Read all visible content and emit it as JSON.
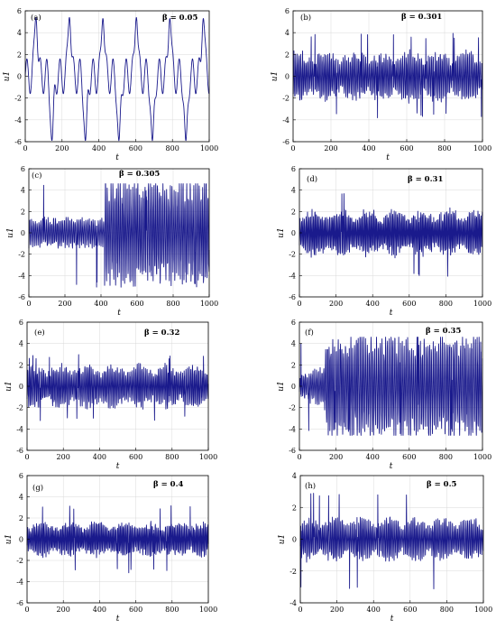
{
  "chart_data": [
    {
      "type": "line",
      "panel": "(a)",
      "annotation": "β = 0.05",
      "xlabel": "t",
      "ylabel": "u1",
      "xlim": [
        0,
        1000
      ],
      "ylim": [
        -6,
        6
      ],
      "xticks": [
        0,
        200,
        400,
        600,
        800,
        1000
      ],
      "yticks": [
        -6,
        -4,
        -2,
        0,
        2,
        4,
        6
      ],
      "grid": true,
      "series": [
        {
          "color": "#1a1a8c",
          "x_range": [
            0,
            1000
          ],
          "description_values": {
            "peaks_high": [
              5.4,
              5.4,
              5.3,
              5.4,
              5.3
            ],
            "peaks_low": [
              -5.9,
              -5.9,
              -5.9,
              -5.9,
              -5.9
            ],
            "base_amplitude": 1.6,
            "base_period": 36,
            "burst_period": 182
          }
        }
      ]
    },
    {
      "type": "line",
      "panel": "(b)",
      "annotation": "β = 0.301",
      "xlabel": "t",
      "ylabel": "u1",
      "xlim": [
        0,
        1000
      ],
      "ylim": [
        -6,
        6
      ],
      "xticks": [
        0,
        200,
        400,
        600,
        800,
        1000
      ],
      "yticks": [
        -6,
        -4,
        -2,
        0,
        2,
        4,
        6
      ],
      "grid": true,
      "series": [
        {
          "color": "#1a1a8c",
          "x_range": [
            0,
            1000
          ],
          "description_values": {
            "typical_amplitude": 1.7,
            "max": 4.0,
            "min": -3.9,
            "fast_period": 11
          }
        }
      ]
    },
    {
      "type": "line",
      "panel": "(c)",
      "annotation": "β = 0.305",
      "xlabel": "t",
      "ylabel": "u1",
      "xlim": [
        0,
        1000
      ],
      "ylim": [
        -6,
        6
      ],
      "xticks": [
        0,
        200,
        400,
        600,
        800,
        1000
      ],
      "yticks": [
        -6,
        -4,
        -2,
        0,
        2,
        4,
        6
      ],
      "grid": true,
      "series": [
        {
          "color": "#1a1a8c",
          "x_range": [
            0,
            1000
          ],
          "description_values": {
            "early_amplitude": 1.3,
            "late_amplitude": 4.6,
            "transition_t": 420,
            "min": -5.2,
            "max": 4.6
          }
        }
      ]
    },
    {
      "type": "line",
      "panel": "(d)",
      "annotation": "β = 0.31",
      "xlabel": "t",
      "ylabel": "u1",
      "xlim": [
        0,
        1000
      ],
      "ylim": [
        -6,
        6
      ],
      "xticks": [
        0,
        200,
        400,
        600,
        800,
        1000
      ],
      "yticks": [
        -6,
        -4,
        -2,
        0,
        2,
        4,
        6
      ],
      "grid": true,
      "series": [
        {
          "color": "#1a1a8c",
          "x_range": [
            0,
            1000
          ],
          "description_values": {
            "typical_amplitude": 1.6,
            "max": 4.0,
            "min": -4.1
          }
        }
      ]
    },
    {
      "type": "line",
      "panel": "(e)",
      "annotation": "β = 0.32",
      "xlabel": "t",
      "ylabel": "u1",
      "xlim": [
        0,
        1000
      ],
      "ylim": [
        -6,
        6
      ],
      "xticks": [
        0,
        200,
        400,
        600,
        800,
        1000
      ],
      "yticks": [
        -6,
        -4,
        -2,
        0,
        2,
        4,
        6
      ],
      "grid": true,
      "series": [
        {
          "color": "#1a1a8c",
          "x_range": [
            0,
            1000
          ],
          "description_values": {
            "typical_amplitude": 1.5,
            "max": 3.0,
            "min": -3.3
          }
        }
      ]
    },
    {
      "type": "line",
      "panel": "(f)",
      "annotation": "β = 0.35",
      "xlabel": "t",
      "ylabel": "u1",
      "xlim": [
        0,
        1000
      ],
      "ylim": [
        -6,
        6
      ],
      "xticks": [
        0,
        200,
        400,
        600,
        800,
        1000
      ],
      "yticks": [
        -6,
        -4,
        -2,
        0,
        2,
        4,
        6
      ],
      "grid": true,
      "series": [
        {
          "color": "#1a1a8c",
          "x_range": [
            0,
            1000
          ],
          "description_values": {
            "early_amplitude": 1.0,
            "late_amplitude": 4.4,
            "transition_t": 140,
            "min": -4.6,
            "max": 4.6
          }
        }
      ]
    },
    {
      "type": "line",
      "panel": "(g)",
      "annotation": "β = 0.4",
      "xlabel": "t",
      "ylabel": "u1",
      "xlim": [
        0,
        1000
      ],
      "ylim": [
        -6,
        6
      ],
      "xticks": [
        0,
        200,
        400,
        600,
        800,
        1000
      ],
      "yticks": [
        -6,
        -4,
        -2,
        0,
        2,
        4,
        6
      ],
      "grid": true,
      "series": [
        {
          "color": "#1a1a8c",
          "x_range": [
            0,
            1000
          ],
          "description_values": {
            "typical_amplitude": 1.2,
            "max": 3.3,
            "min": -3.2
          }
        }
      ]
    },
    {
      "type": "line",
      "panel": "(h)",
      "annotation": "β = 0.5",
      "xlabel": "t",
      "ylabel": "u1",
      "xlim": [
        0,
        1000
      ],
      "ylim": [
        -4,
        4
      ],
      "xticks": [
        0,
        200,
        400,
        600,
        800,
        1000
      ],
      "yticks": [
        -4,
        -2,
        0,
        2,
        4
      ],
      "grid": true,
      "series": [
        {
          "color": "#1a1a8c",
          "x_range": [
            0,
            1000
          ],
          "description_values": {
            "typical_amplitude": 1.0,
            "max": 3.0,
            "min": -3.3
          }
        }
      ]
    }
  ]
}
